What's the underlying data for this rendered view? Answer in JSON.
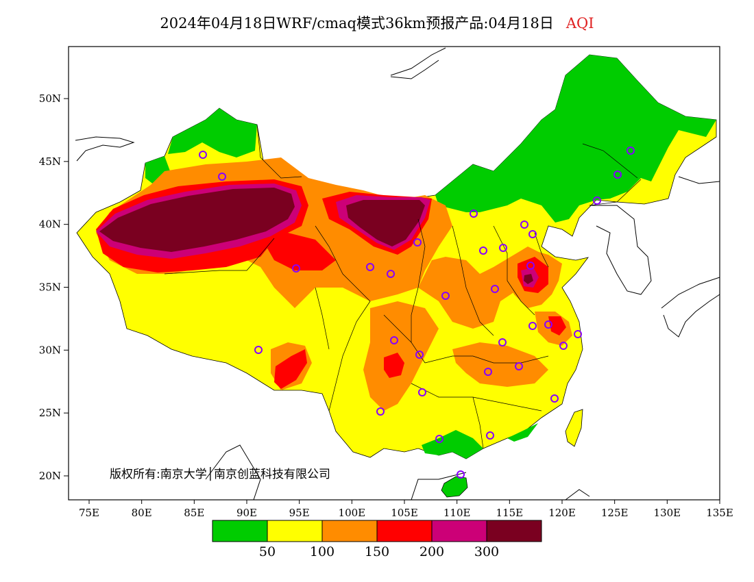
{
  "title": {
    "main": "2024年04月18日WRF/cmaq模式36km预报产品:04月18日",
    "variable": "AQI"
  },
  "credit": "版权所有:南京大学│南京创蓝科技有限公司",
  "axes": {
    "x_ticks": [
      "75E",
      "80E",
      "85E",
      "90E",
      "95E",
      "100E",
      "105E",
      "110E",
      "115E",
      "120E",
      "125E",
      "130E",
      "135E"
    ],
    "y_ticks": [
      "50N",
      "45N",
      "40N",
      "35N",
      "30N",
      "25N",
      "20N"
    ]
  },
  "legend": {
    "colors": [
      "#00cc00",
      "#ffff00",
      "#ff8c00",
      "#ff0000",
      "#cc0077",
      "#7a0020"
    ],
    "labels": [
      "50",
      "100",
      "150",
      "200",
      "300"
    ]
  },
  "colors": {
    "good": "#00cc00",
    "moderate": "#ffff00",
    "light_pollution": "#ff8c00",
    "moderate_pollution": "#ff0000",
    "heavy_pollution": "#cc0077",
    "severe_pollution": "#7a0020",
    "station_marker": "#8800ff"
  }
}
